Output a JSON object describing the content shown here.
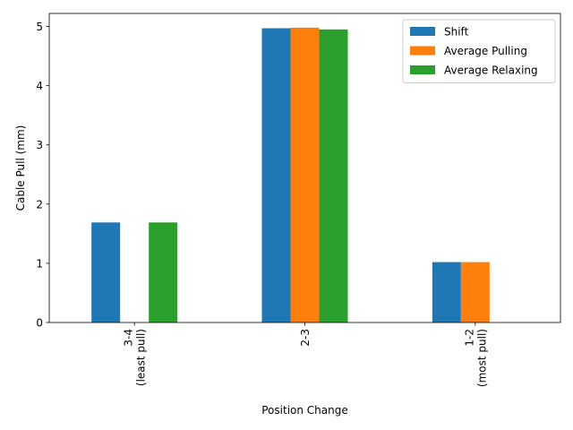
{
  "chart_data": {
    "type": "bar",
    "xlabel": "Position Change",
    "ylabel": "Cable Pull (mm)",
    "categories": [
      [
        "3-4",
        "(least pull)"
      ],
      [
        "2-3"
      ],
      [
        "1-2",
        "(most pull)"
      ]
    ],
    "series": [
      {
        "name": "Shift",
        "color": "#1f77b4",
        "values": [
          1.69,
          4.97,
          1.02
        ]
      },
      {
        "name": "Average Pulling",
        "color": "#ff7f0e",
        "values": [
          null,
          4.98,
          1.02
        ]
      },
      {
        "name": "Average Relaxing",
        "color": "#2ca02c",
        "values": [
          1.69,
          4.95,
          null
        ]
      }
    ],
    "ylim": [
      0,
      5.22
    ],
    "yticks": [
      "0",
      "1",
      "2",
      "3",
      "4",
      "5"
    ],
    "legend_position": "top-right",
    "grid": false
  }
}
